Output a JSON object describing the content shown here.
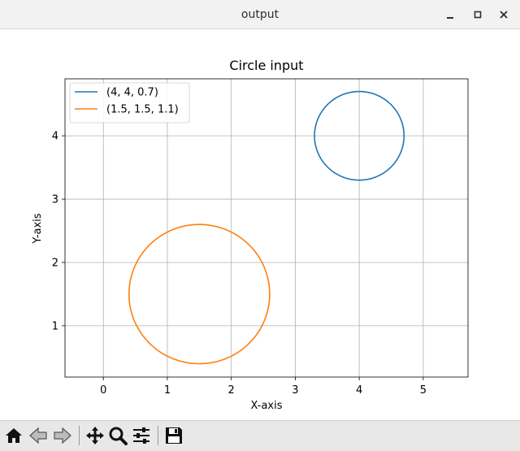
{
  "window": {
    "title": "output",
    "controls": [
      "minimize-icon",
      "maximize-icon",
      "close-icon"
    ]
  },
  "toolbar": {
    "buttons": [
      {
        "name": "home-button",
        "icon": "home-icon"
      },
      {
        "name": "back-button",
        "icon": "arrow-left-icon"
      },
      {
        "name": "forward-button",
        "icon": "arrow-right-icon"
      },
      {
        "name": "pan-button",
        "icon": "move-icon"
      },
      {
        "name": "zoom-button",
        "icon": "magnifier-icon"
      },
      {
        "name": "configure-subplots-button",
        "icon": "sliders-icon"
      },
      {
        "name": "save-button",
        "icon": "floppy-disk-icon"
      }
    ]
  },
  "chart_data": {
    "type": "line",
    "title": "Circle input",
    "xlabel": "X-axis",
    "ylabel": "Y-axis",
    "xlim": [
      -0.6,
      5.7
    ],
    "ylim": [
      0.19,
      4.9
    ],
    "xticks": [
      0,
      1,
      2,
      3,
      4,
      5
    ],
    "yticks": [
      1,
      2,
      3,
      4
    ],
    "grid": true,
    "legend": "upper left",
    "series": [
      {
        "name": "(4, 4, 0.7)",
        "color": "#1f77b4",
        "shape": "circle",
        "center": [
          4,
          4
        ],
        "radius": 0.7
      },
      {
        "name": "(1.5, 1.5, 1.1)",
        "color": "#ff7f0e",
        "shape": "circle",
        "center": [
          1.5,
          1.5
        ],
        "radius": 1.1
      }
    ]
  }
}
